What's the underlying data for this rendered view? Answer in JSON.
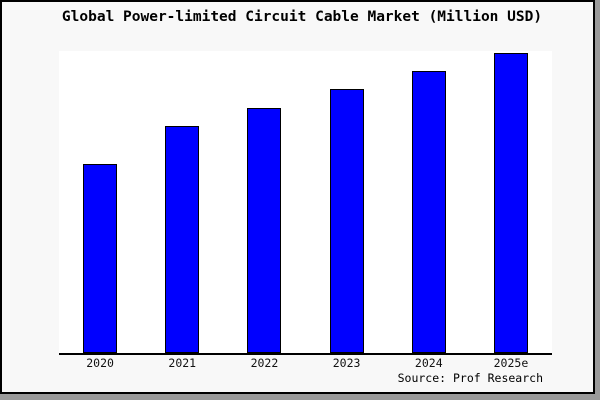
{
  "chart_data": {
    "type": "bar",
    "title": "Global Power-limited Circuit Cable Market (Million USD)",
    "categories": [
      "2020",
      "2021",
      "2022",
      "2023",
      "2024",
      "2025e"
    ],
    "values": [
      62.6,
      75.2,
      81.1,
      87.4,
      93.4,
      99.3
    ],
    "values_note": "no numeric y-axis shown in chart; values are bar heights as percent of plot height",
    "xlabel": "",
    "ylabel": "",
    "ylim": [
      0,
      100
    ],
    "grid": false,
    "legend": false,
    "source": "Source: Prof Research"
  },
  "colors": {
    "bar_fill": "#0000ff",
    "bar_border": "#000000",
    "plot_background": "#ffffff",
    "page_background": "#f8f8f8",
    "page_border": "#000000",
    "shadow": "#9a9a9a",
    "text": "#000000"
  }
}
